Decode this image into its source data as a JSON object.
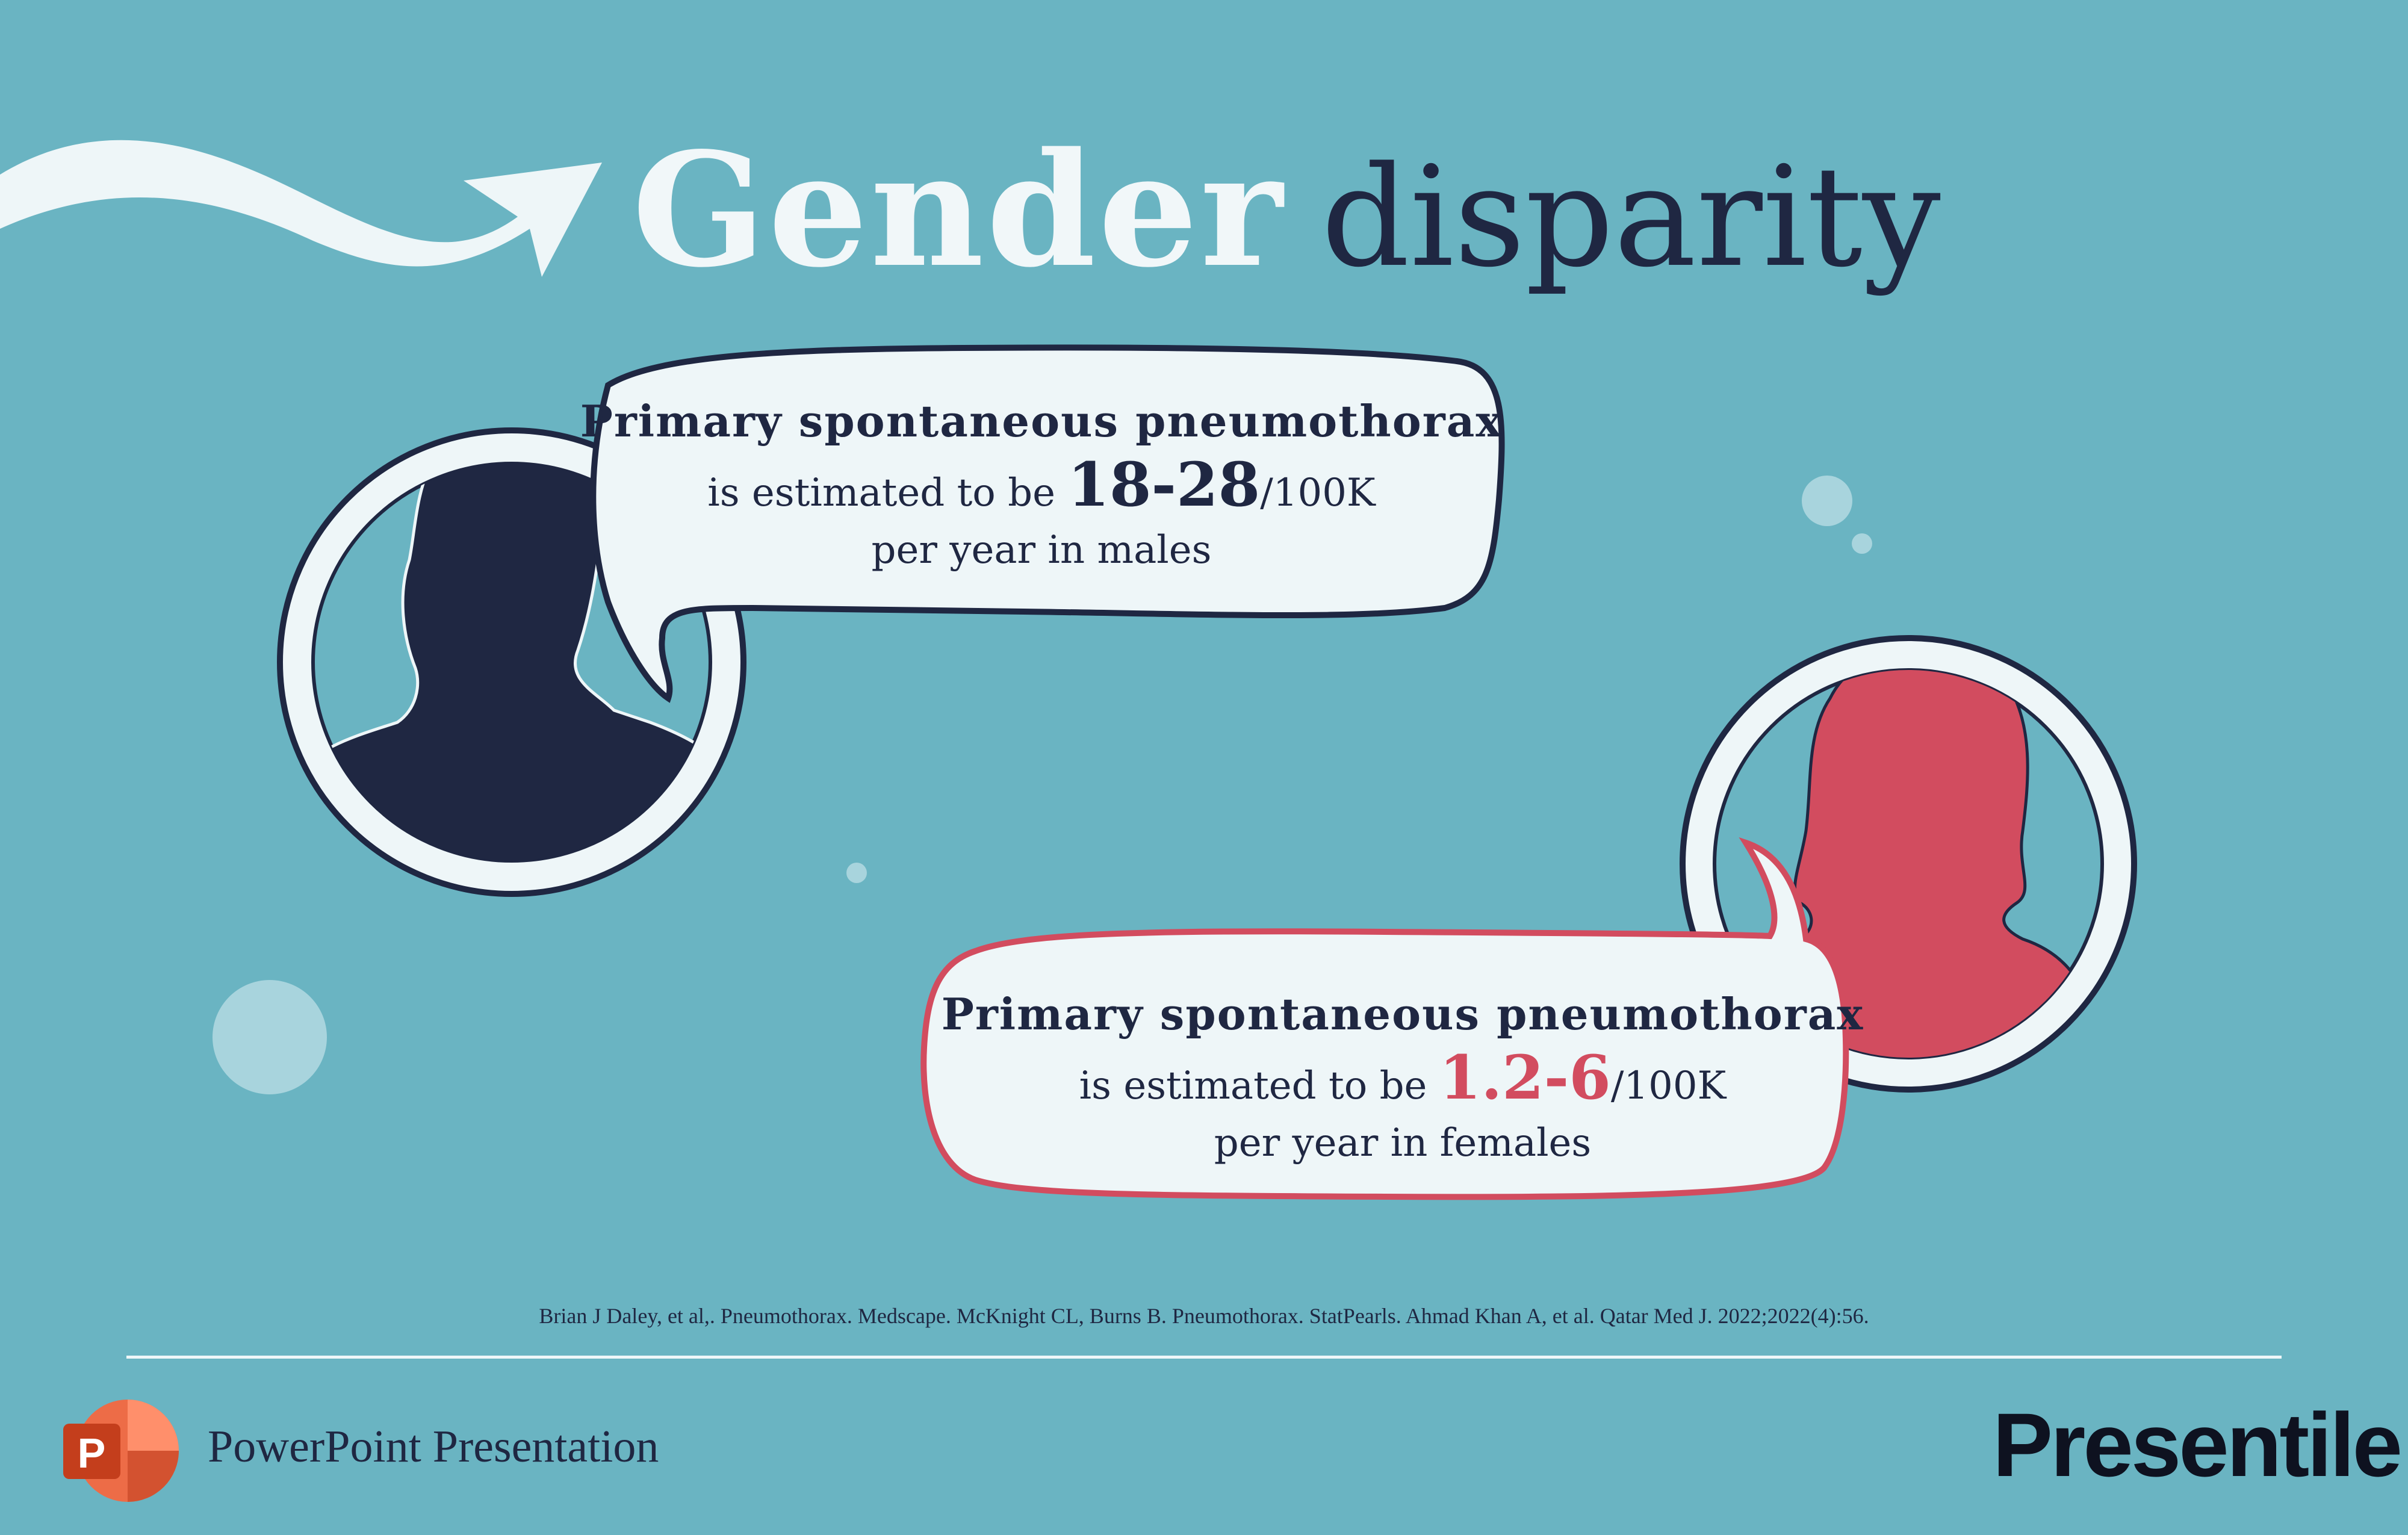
{
  "title": {
    "word1": "Gender",
    "word2": "disparity"
  },
  "male_bubble": {
    "line1": "Primary spontaneous pneumothorax",
    "line2_prefix": "is estimated to be ",
    "line2_value": "18-28",
    "line2_unit": "/100K",
    "line3": "per year in males"
  },
  "female_bubble": {
    "line1": "Primary spontaneous pneumothorax",
    "line2_prefix": "is estimated to be ",
    "line2_value": "1.2-6",
    "line2_unit": "/100K",
    "line3": "per year in females"
  },
  "references": "Brian J Daley, et al,. Pneumothorax. Medscape. McKnight CL, Burns B. Pneumothorax. StatPearls. Ahmad Khan A, et al. Qatar Med J. 2022;2022(4):56.",
  "footer": {
    "app_label": "PowerPoint Presentation",
    "brand": "Presentile",
    "ppt_letter": "P"
  },
  "colors": {
    "background": "#6ab4c2",
    "navy": "#1f2742",
    "accent_red": "#d24c5f",
    "light": "#f1f7f9"
  }
}
